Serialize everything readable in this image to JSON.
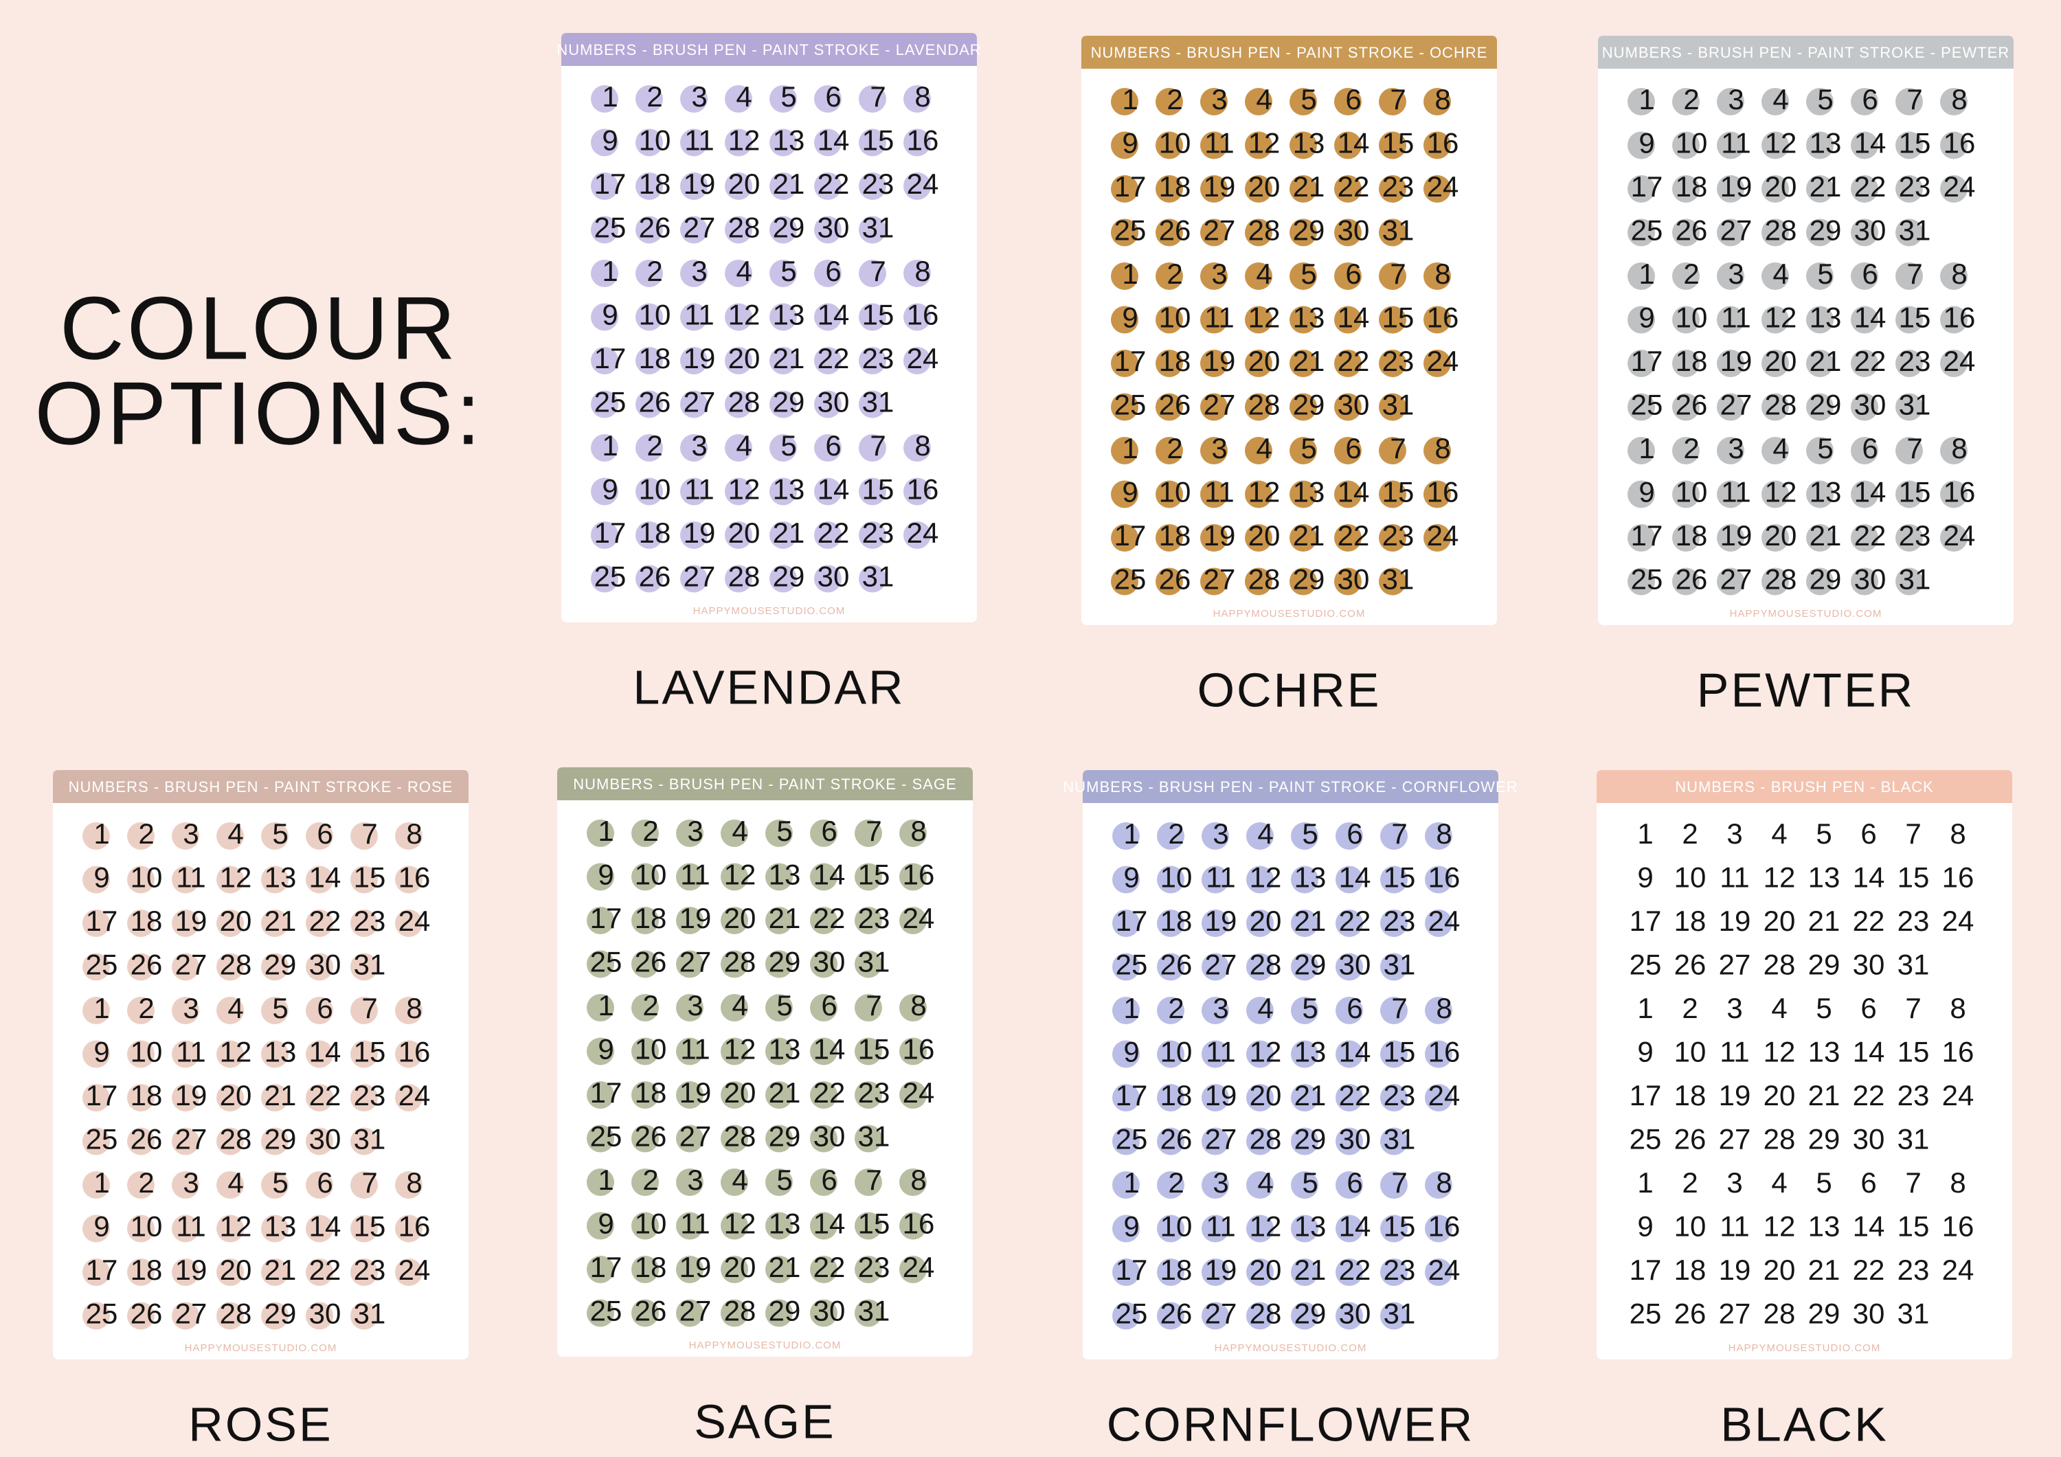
{
  "heading": [
    "COLOUR",
    "OPTIONS:"
  ],
  "numbers": [
    1,
    2,
    3,
    4,
    5,
    6,
    7,
    8,
    9,
    10,
    11,
    12,
    13,
    14,
    15,
    16,
    17,
    18,
    19,
    20,
    21,
    22,
    23,
    24,
    25,
    26,
    27,
    28,
    29,
    30,
    31
  ],
  "sheets": [
    {
      "header": "NUMBERS - BRUSH PEN - PAINT STROKE - LAVENDAR",
      "footer": "HAPPYMOUSESTUDIO.COM",
      "label": "LAVENDAR",
      "header_color": "#b3a8d6",
      "dot_color": "#cbc2e8"
    },
    {
      "header": "NUMBERS - BRUSH PEN - PAINT STROKE - OCHRE",
      "footer": "HAPPYMOUSESTUDIO.COM",
      "label": "OCHRE",
      "header_color": "#c99a55",
      "dot_color": "#c9944a"
    },
    {
      "header": "NUMBERS - BRUSH PEN - PAINT STROKE - PEWTER",
      "footer": "HAPPYMOUSESTUDIO.COM",
      "label": "PEWTER",
      "header_color": "#c3c6c8",
      "dot_color": "#bfc1c3"
    },
    {
      "header": "NUMBERS - BRUSH PEN - PAINT STROKE - ROSE",
      "footer": "HAPPYMOUSESTUDIO.COM",
      "label": "ROSE",
      "header_color": "#d4b5aa",
      "dot_color": "#eccfc4"
    },
    {
      "header": "NUMBERS - BRUSH PEN - PAINT STROKE - SAGE",
      "footer": "HAPPYMOUSESTUDIO.COM",
      "label": "SAGE",
      "header_color": "#a9ad92",
      "dot_color": "#b8bea2"
    },
    {
      "header": "NUMBERS - BRUSH PEN - PAINT STROKE - CORNFLOWER",
      "footer": "HAPPYMOUSESTUDIO.COM",
      "label": "CORNFLOWER",
      "header_color": "#a7abd1",
      "dot_color": "#babee6"
    },
    {
      "header": "NUMBERS - BRUSH PEN - BLACK",
      "footer": "HAPPYMOUSESTUDIO.COM",
      "label": "BLACK",
      "header_color": "#f3c3b0"
    }
  ]
}
